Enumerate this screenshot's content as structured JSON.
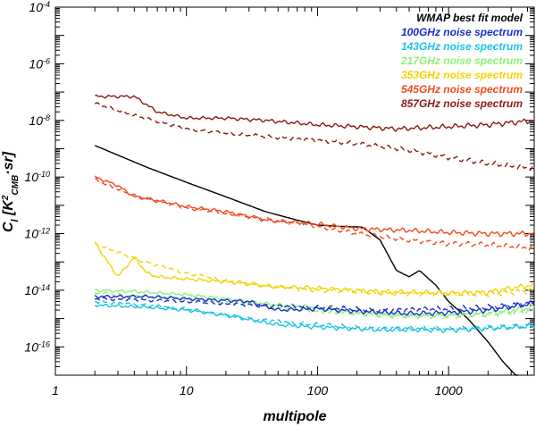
{
  "chart_data": {
    "type": "line",
    "xscale": "log",
    "yscale": "log",
    "xlim": [
      1,
      4500
    ],
    "ylim": [
      1e-17,
      0.0001
    ],
    "xlabel": "multipole",
    "ylabel": {
      "pre": "C",
      "sub_l": "l",
      "bracket": " [K",
      "sup": "2",
      "sub_cmb": "CMB",
      "post": "·sr]"
    },
    "x_ticks": [
      {
        "v": 1,
        "label": "1"
      },
      {
        "v": 10,
        "label": "10"
      },
      {
        "v": 100,
        "label": "100"
      },
      {
        "v": 1000,
        "label": "1000"
      }
    ],
    "y_ticks": [
      {
        "v": 0.0001,
        "base": "10",
        "exp": "-4"
      },
      {
        "v": 1e-06,
        "base": "10",
        "exp": "-6"
      },
      {
        "v": 1e-08,
        "base": "10",
        "exp": "-8"
      },
      {
        "v": 1e-10,
        "base": "10",
        "exp": "-10"
      },
      {
        "v": 1e-12,
        "base": "10",
        "exp": "-12"
      },
      {
        "v": 1e-14,
        "base": "10",
        "exp": "-14"
      },
      {
        "v": 1e-16,
        "base": "10",
        "exp": "-16"
      }
    ],
    "legend": [
      {
        "name": "WMAP best fit model",
        "color": "#000000"
      },
      {
        "name": "100GHz noise spectrum",
        "color": "#1a2ec8"
      },
      {
        "name": "143GHz noise spectrum",
        "color": "#19c3e6"
      },
      {
        "name": "217GHz noise spectrum",
        "color": "#8ef07a"
      },
      {
        "name": "353GHz noise spectrum",
        "color": "#f5d200"
      },
      {
        "name": "545GHz noise spectrum",
        "color": "#f04a1e"
      },
      {
        "name": "857GHz noise spectrum",
        "color": "#8a1a12"
      }
    ],
    "series": [
      {
        "name": "WMAP best fit model",
        "color": "#000000",
        "style": "solid",
        "points": [
          [
            2,
            1.3e-09
          ],
          [
            5,
            2.2e-10
          ],
          [
            10,
            6.5e-11
          ],
          [
            20,
            2e-11
          ],
          [
            40,
            6e-12
          ],
          [
            70,
            3e-12
          ],
          [
            100,
            2e-12
          ],
          [
            150,
            1.8e-12
          ],
          [
            220,
            1.7e-12
          ],
          [
            300,
            6e-13
          ],
          [
            400,
            5e-14
          ],
          [
            500,
            3e-14
          ],
          [
            600,
            5e-14
          ],
          [
            800,
            1.5e-14
          ],
          [
            1000,
            4e-15
          ],
          [
            1400,
            1e-15
          ],
          [
            2000,
            1.5e-16
          ],
          [
            2600,
            3e-17
          ],
          [
            3400,
            8e-18
          ]
        ]
      },
      {
        "name": "857GHz noise spectrum",
        "color": "#8a1a12",
        "style": "solid",
        "points": [
          [
            2,
            7e-08
          ],
          [
            4,
            7e-08
          ],
          [
            6,
            2e-08
          ],
          [
            10,
            1.2e-08
          ],
          [
            20,
            1.2e-08
          ],
          [
            40,
            1e-08
          ],
          [
            100,
            7e-09
          ],
          [
            200,
            6e-09
          ],
          [
            400,
            5e-09
          ],
          [
            1000,
            6e-09
          ],
          [
            2000,
            7e-09
          ],
          [
            4500,
            1e-08
          ]
        ]
      },
      {
        "name": "857GHz noise spectrum",
        "color": "#8a1a12",
        "style": "dashed",
        "points": [
          [
            2,
            4e-08
          ],
          [
            4,
            1.5e-08
          ],
          [
            10,
            5e-09
          ],
          [
            20,
            3.5e-09
          ],
          [
            50,
            2.5e-09
          ],
          [
            100,
            2e-09
          ],
          [
            200,
            1.5e-09
          ],
          [
            500,
            9e-10
          ],
          [
            1000,
            5e-10
          ],
          [
            2000,
            3e-10
          ],
          [
            4500,
            2e-10
          ]
        ]
      },
      {
        "name": "545GHz noise spectrum",
        "color": "#f04a1e",
        "style": "solid",
        "points": [
          [
            2,
            1e-10
          ],
          [
            3,
            5e-11
          ],
          [
            4,
            2e-11
          ],
          [
            6,
            1.5e-11
          ],
          [
            10,
            9e-12
          ],
          [
            20,
            6e-12
          ],
          [
            40,
            3e-12
          ],
          [
            100,
            2.2e-12
          ],
          [
            200,
            1.5e-12
          ],
          [
            500,
            1.3e-12
          ],
          [
            1000,
            1.1e-12
          ],
          [
            2000,
            1e-12
          ],
          [
            4500,
            1e-12
          ]
        ]
      },
      {
        "name": "545GHz noise spectrum",
        "color": "#f04a1e",
        "style": "dashed",
        "points": [
          [
            2,
            8e-11
          ],
          [
            4,
            2.2e-11
          ],
          [
            10,
            8e-12
          ],
          [
            30,
            4e-12
          ],
          [
            60,
            2.5e-12
          ],
          [
            100,
            1.8e-12
          ],
          [
            200,
            1e-12
          ],
          [
            500,
            6e-13
          ],
          [
            1000,
            4.5e-13
          ],
          [
            2000,
            4e-13
          ],
          [
            4500,
            3e-13
          ]
        ]
      },
      {
        "name": "353GHz noise spectrum",
        "color": "#f5d200",
        "style": "solid",
        "points": [
          [
            2,
            5e-13
          ],
          [
            2.5,
            1e-13
          ],
          [
            3,
            3e-14
          ],
          [
            4,
            1.5e-13
          ],
          [
            5,
            4e-14
          ],
          [
            6,
            3e-14
          ],
          [
            10,
            2.5e-14
          ],
          [
            20,
            2e-14
          ],
          [
            50,
            1.3e-14
          ],
          [
            100,
            1.2e-14
          ],
          [
            300,
            9e-15
          ],
          [
            1000,
            8e-15
          ],
          [
            2000,
            8.5e-15
          ],
          [
            3000,
            1.2e-14
          ],
          [
            4500,
            1.5e-14
          ]
        ]
      },
      {
        "name": "353GHz noise spectrum",
        "color": "#f5d200",
        "style": "dashed",
        "points": [
          [
            2,
            4.5e-13
          ],
          [
            4,
            1.3e-13
          ],
          [
            10,
            4e-14
          ],
          [
            20,
            2.2e-14
          ],
          [
            50,
            1.3e-14
          ],
          [
            100,
            1e-14
          ],
          [
            300,
            8e-15
          ],
          [
            1000,
            7e-15
          ],
          [
            2000,
            7e-15
          ],
          [
            4500,
            1e-14
          ]
        ]
      },
      {
        "name": "217GHz noise spectrum",
        "color": "#8ef07a",
        "style": "solid",
        "points": [
          [
            2,
            1e-14
          ],
          [
            4,
            9e-15
          ],
          [
            10,
            7e-15
          ],
          [
            20,
            5e-15
          ],
          [
            50,
            3e-15
          ],
          [
            100,
            2.5e-15
          ],
          [
            200,
            1.5e-15
          ],
          [
            500,
            1.3e-15
          ],
          [
            1000,
            1.3e-15
          ],
          [
            2000,
            1.5e-15
          ],
          [
            4500,
            2.5e-15
          ]
        ]
      },
      {
        "name": "217GHz noise spectrum",
        "color": "#8ef07a",
        "style": "dashed",
        "points": [
          [
            2,
            8e-15
          ],
          [
            5,
            6e-15
          ],
          [
            10,
            5e-15
          ],
          [
            30,
            3e-15
          ],
          [
            100,
            1.8e-15
          ],
          [
            300,
            1.3e-15
          ],
          [
            1000,
            1.2e-15
          ],
          [
            2000,
            1.3e-15
          ],
          [
            4500,
            1.8e-15
          ]
        ]
      },
      {
        "name": "100GHz noise spectrum",
        "color": "#1a2ec8",
        "style": "solid",
        "points": [
          [
            2,
            6e-15
          ],
          [
            5,
            6e-15
          ],
          [
            10,
            5e-15
          ],
          [
            30,
            4e-15
          ],
          [
            50,
            2e-15
          ],
          [
            100,
            2.2e-15
          ],
          [
            200,
            1.8e-15
          ],
          [
            500,
            1.5e-15
          ],
          [
            1000,
            1.6e-15
          ],
          [
            2000,
            2e-15
          ],
          [
            4500,
            3.5e-15
          ]
        ]
      },
      {
        "name": "100GHz noise spectrum",
        "color": "#1a2ec8",
        "style": "dashed",
        "points": [
          [
            2,
            5e-15
          ],
          [
            5,
            4.5e-15
          ],
          [
            10,
            4e-15
          ],
          [
            30,
            3e-15
          ],
          [
            100,
            2.5e-15
          ],
          [
            300,
            2e-15
          ],
          [
            1000,
            2.2e-15
          ],
          [
            2000,
            2.5e-15
          ],
          [
            4500,
            3.5e-15
          ]
        ]
      },
      {
        "name": "143GHz noise spectrum",
        "color": "#19c3e6",
        "style": "solid",
        "points": [
          [
            2,
            3e-15
          ],
          [
            5,
            2.5e-15
          ],
          [
            10,
            2e-15
          ],
          [
            20,
            1.3e-15
          ],
          [
            50,
            6e-16
          ],
          [
            100,
            5e-16
          ],
          [
            300,
            4e-16
          ],
          [
            1000,
            4e-16
          ],
          [
            2000,
            4.5e-16
          ],
          [
            4500,
            5.5e-16
          ]
        ]
      },
      {
        "name": "143GHz noise spectrum",
        "color": "#19c3e6",
        "style": "dashed",
        "points": [
          [
            2,
            4e-15
          ],
          [
            5,
            3e-15
          ],
          [
            10,
            2.2e-15
          ],
          [
            30,
            1e-15
          ],
          [
            100,
            6e-16
          ],
          [
            300,
            4.5e-16
          ],
          [
            1000,
            4.5e-16
          ],
          [
            2000,
            5e-16
          ],
          [
            4500,
            6e-16
          ]
        ]
      }
    ]
  }
}
